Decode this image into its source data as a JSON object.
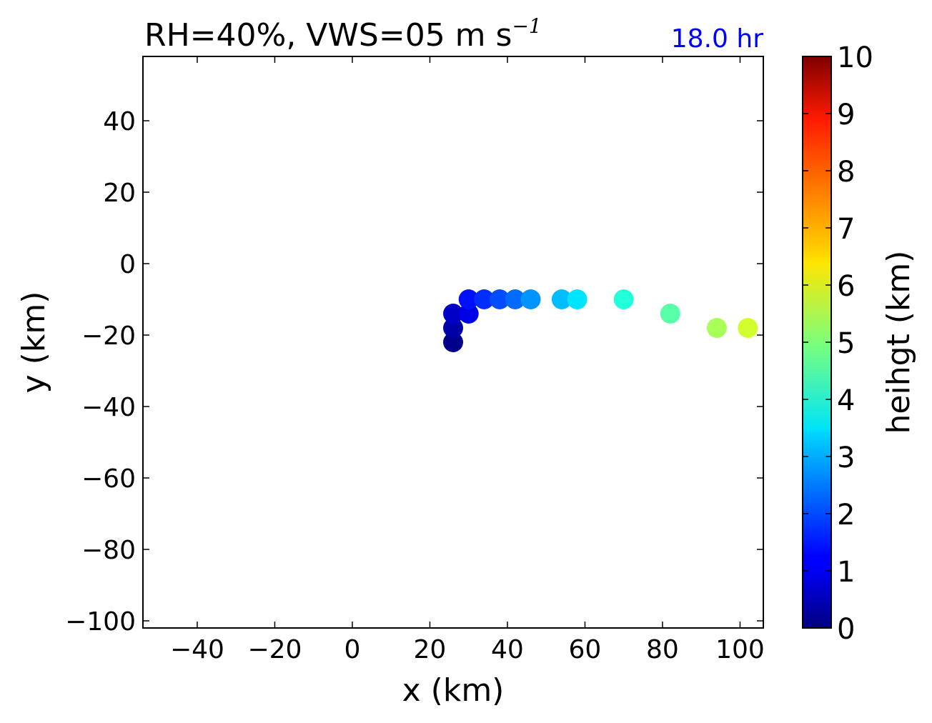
{
  "chart_data": {
    "type": "scatter",
    "title_main": "RH=40%, VWS=05 m s",
    "title_sup": "−1",
    "time_label": "18.0 hr",
    "xlabel": "x (km)",
    "ylabel": "y (km)",
    "xlim": [
      -54,
      106
    ],
    "ylim": [
      -102,
      58
    ],
    "xticks": [
      -40,
      -20,
      0,
      20,
      40,
      60,
      80,
      100
    ],
    "xtick_labels": [
      "−40",
      "−20",
      "0",
      "20",
      "40",
      "60",
      "80",
      "100"
    ],
    "yticks": [
      40,
      20,
      0,
      -20,
      -40,
      -60,
      -80,
      -100
    ],
    "ytick_labels": [
      "40",
      "20",
      "0",
      "−20",
      "−40",
      "−60",
      "−80",
      "−100"
    ],
    "colorbar": {
      "label": "heihgt (km)",
      "range": [
        0,
        10
      ],
      "ticks": [
        0,
        1,
        2,
        3,
        4,
        5,
        6,
        7,
        8,
        9,
        10
      ],
      "tick_labels": [
        "0",
        "1",
        "2",
        "3",
        "4",
        "5",
        "6",
        "7",
        "8",
        "9",
        "10"
      ],
      "colormap": "jet"
    },
    "points": [
      {
        "x": 26,
        "y": -22,
        "height": 0.1
      },
      {
        "x": 26,
        "y": -18,
        "height": 0.4
      },
      {
        "x": 26,
        "y": -14,
        "height": 0.7
      },
      {
        "x": 30,
        "y": -14,
        "height": 1.0
      },
      {
        "x": 30,
        "y": -10,
        "height": 1.4
      },
      {
        "x": 34,
        "y": -10,
        "height": 1.7
      },
      {
        "x": 38,
        "y": -10,
        "height": 2.0
      },
      {
        "x": 42,
        "y": -10,
        "height": 2.3
      },
      {
        "x": 46,
        "y": -10,
        "height": 2.7
      },
      {
        "x": 54,
        "y": -10,
        "height": 3.1
      },
      {
        "x": 58,
        "y": -10,
        "height": 3.5
      },
      {
        "x": 70,
        "y": -10,
        "height": 4.1
      },
      {
        "x": 82,
        "y": -14,
        "height": 4.6
      },
      {
        "x": 94,
        "y": -18,
        "height": 5.4
      },
      {
        "x": 102,
        "y": -18,
        "height": 5.8
      }
    ]
  }
}
